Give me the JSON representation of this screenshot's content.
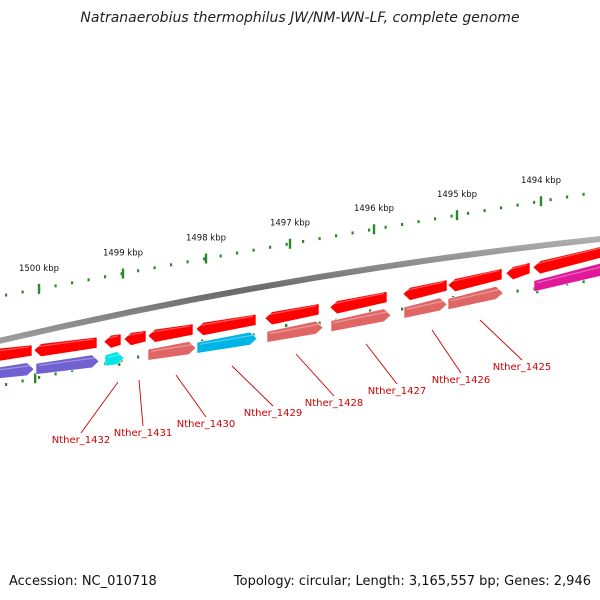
{
  "title": "Natranaerobius thermophilus JW/NM-WN-LF, complete genome",
  "footer": {
    "accession": "Accession: NC_010718",
    "summary": "Topology: circular; Length: 3,165,557 bp; Genes: 2,946"
  },
  "colors": {
    "backbone": "#7a7a7a",
    "forward_gene": "#ff0000",
    "reverse_gene": "#e06666",
    "label": "#cc0000",
    "tick": "#2a8a2a",
    "cds_blue": "#00b4e6",
    "cds_cyan": "#00e6e6",
    "cds_purple": "#7060d0",
    "cds_magenta": "#e0189a"
  },
  "ruler_ticks": [
    {
      "label": "1494 kbp"
    },
    {
      "label": "1495 kbp"
    },
    {
      "label": "1496 kbp"
    },
    {
      "label": "1497 kbp"
    },
    {
      "label": "1498 kbp"
    },
    {
      "label": "1499 kbp"
    },
    {
      "label": "1500 kbp"
    }
  ],
  "gene_labels": [
    {
      "name": "Nther_1425"
    },
    {
      "name": "Nther_1426"
    },
    {
      "name": "Nther_1427"
    },
    {
      "name": "Nther_1428"
    },
    {
      "name": "Nther_1429"
    },
    {
      "name": "Nther_1430"
    },
    {
      "name": "Nther_1431"
    },
    {
      "name": "Nther_1432"
    }
  ]
}
